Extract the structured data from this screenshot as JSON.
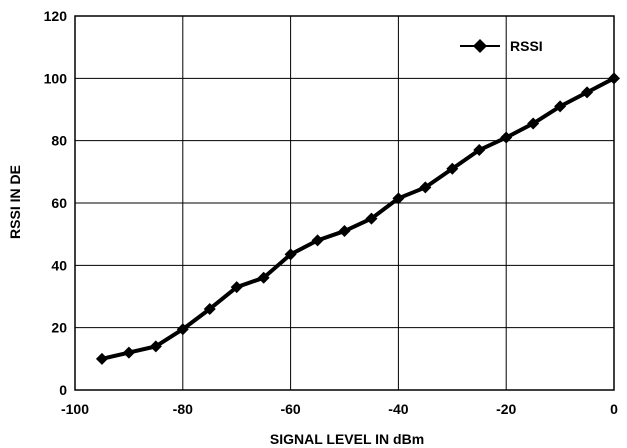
{
  "chart_data": {
    "type": "line",
    "title": "",
    "xlabel": "SIGNAL LEVEL IN dBm",
    "ylabel": "RSSI IN DE",
    "xlim": [
      -100,
      0
    ],
    "ylim": [
      0,
      120
    ],
    "xticks": [
      -100,
      -80,
      -60,
      -40,
      -20,
      0
    ],
    "yticks": [
      0,
      20,
      40,
      60,
      80,
      100,
      120
    ],
    "grid": true,
    "legend_position": "top-right",
    "series": [
      {
        "name": "RSSI",
        "color": "#000000",
        "marker": "diamond",
        "x": [
          -95,
          -90,
          -85,
          -80,
          -75,
          -70,
          -65,
          -60,
          -55,
          -50,
          -45,
          -40,
          -35,
          -30,
          -25,
          -20,
          -15,
          -10,
          -5,
          0
        ],
        "y": [
          10,
          12,
          14,
          19.5,
          26,
          33,
          36,
          43.5,
          48,
          51,
          55,
          61.5,
          65,
          71,
          77,
          81,
          85.5,
          91,
          95.5,
          100
        ]
      }
    ]
  }
}
